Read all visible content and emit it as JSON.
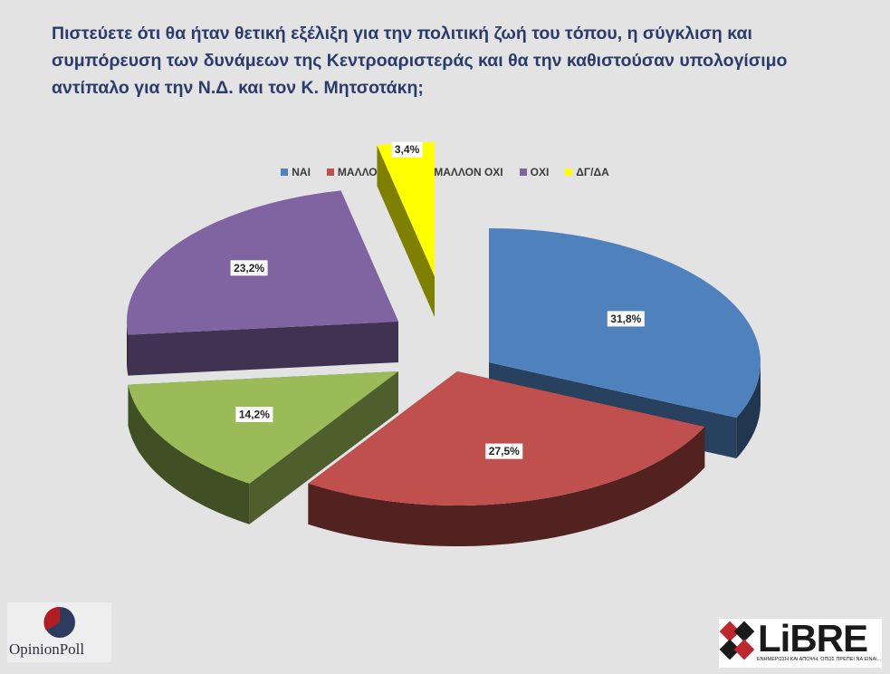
{
  "title": "Πιστεύετε ότι θα ήταν θετική εξέλιξη για την πολιτική ζωή του τόπου, η σύγκλιση και συμπόρευση των δυνάμεων της Κεντροαριστεράς και θα την καθιστούσαν υπολογίσιμο αντίπαλο για την Ν.Δ. και τον Κ. Μητσοτάκη;",
  "chart_data": {
    "type": "pie",
    "style": "3d-exploded",
    "legend_position": "top",
    "categories": [
      "ΝΑΙ",
      "ΜΑΛΛΟΝ ΝΑΙ",
      "ΜΑΛΛΟΝ ΟΧΙ",
      "ΟΧΙ",
      "ΔΓ/ΔΑ"
    ],
    "values": [
      31.8,
      27.5,
      14.2,
      23.2,
      3.4
    ],
    "labels": [
      "31,8%",
      "27,5%",
      "14,2%",
      "23,2%",
      "3,4%"
    ],
    "colors": [
      "#4f81bd",
      "#c0504d",
      "#9bbb59",
      "#8064a2",
      "#ffff00"
    ]
  },
  "logos": {
    "left": "OpinionPoll",
    "right": "LiBRE",
    "right_tagline": "ΕΝΗΜΕΡΩΣΗ ΚΑΙ ΑΠΟΨΗ, ΟΠΩΣ ΠΡΕΠΕΙ ΝΑ ΕΙΝΑΙ..."
  }
}
